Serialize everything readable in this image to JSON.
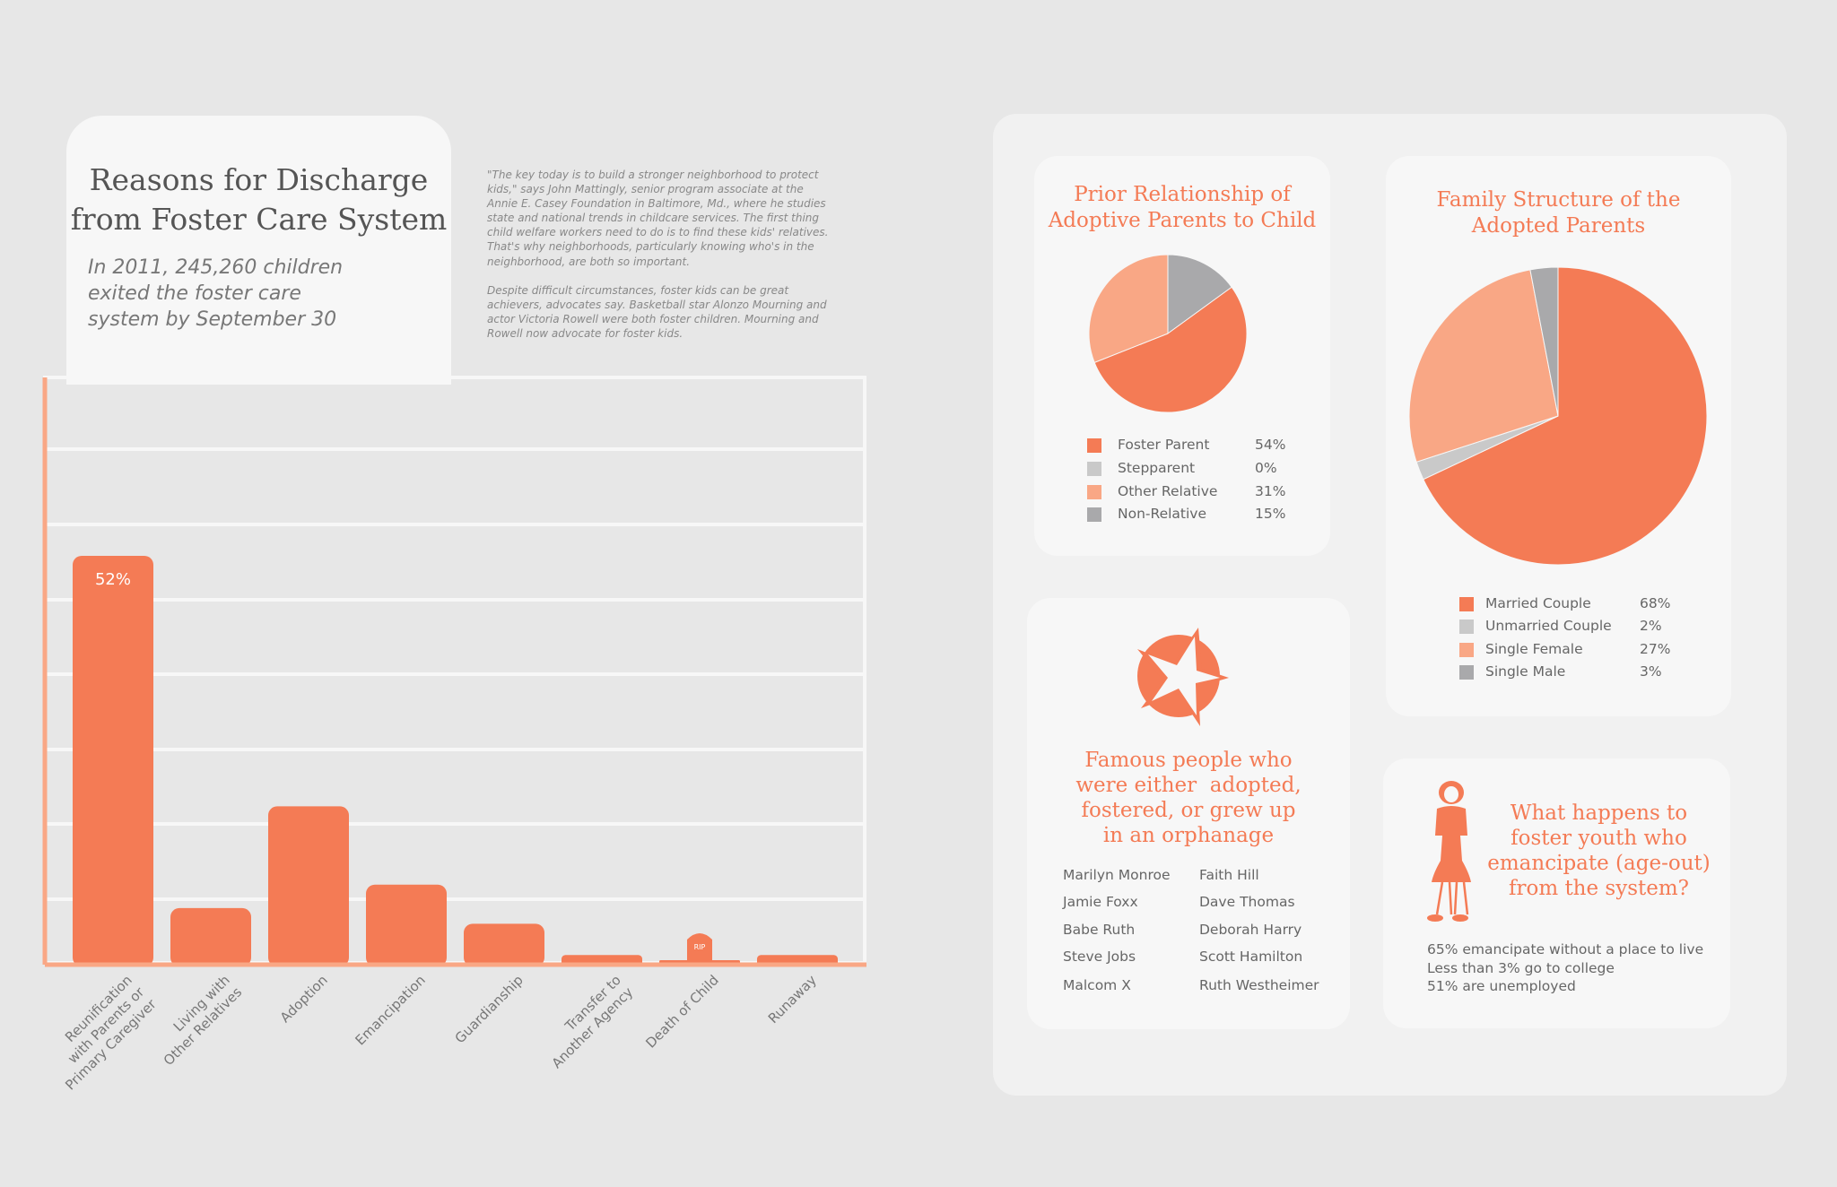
{
  "header": {
    "title_line1": "Reasons for Discharge",
    "title_line2": "from Foster Care System",
    "subtitle_line1": "In 2011, 245,260 children",
    "subtitle_line2": "exited the foster care",
    "subtitle_line3": "system by September 30"
  },
  "quote": {
    "paragraph1": "\"The key today is to build a stronger neighborhood to protect kids,\" says John Mattingly, senior program associate at the Annie E. Casey Foundation in Baltimore, Md., where he studies state and national trends in childcare services. The first thing child welfare workers need to do is to find these kids' relatives. That's why neighborhoods, particularly knowing who's in the neighborhood, are both so important.",
    "paragraph2": "Despite difficult circumstances, foster kids can be great achievers, advocates say. Basketball star Alonzo Mourning and actor Victoria Rowell were both foster children. Mourning and Rowell now advocate for foster kids."
  },
  "colors": {
    "orange": "#f47b55",
    "light_orange": "#f9a785",
    "light_grey": "#c9c9c9",
    "grey": "#a9a9ab",
    "axis": "#f9a785"
  },
  "chart_data": [
    {
      "type": "bar",
      "title": "Reasons for Discharge from Foster Care System",
      "categories": [
        "Reunification with Parents or Primary Caregiver",
        "Living with Other Relatives",
        "Adoption",
        "Emancipation",
        "Guardianship",
        "Transfer to Another Agency",
        "Death of Child",
        "Runaway"
      ],
      "category_lines": [
        [
          "Reunification",
          "with Parents or",
          "Primary Caregiver"
        ],
        [
          "Living with",
          "Other Relatives"
        ],
        [
          "Adoption"
        ],
        [
          "Emancipation"
        ],
        [
          "Guardianship"
        ],
        [
          "Transfer to",
          "Another Agency"
        ],
        [
          "Death of Child"
        ],
        [
          "Runaway"
        ]
      ],
      "values": [
        52,
        7,
        20,
        10,
        5,
        1,
        0,
        1
      ],
      "unit": "%",
      "data_labels": [
        "52%"
      ],
      "ylim": [
        0,
        60
      ],
      "grid": true,
      "tombstone_text": "RIP"
    },
    {
      "type": "pie",
      "title": "Prior Relationship of Adoptive Parents to Child",
      "title_lines": [
        "Prior Relationship of",
        "Adoptive Parents to Child"
      ],
      "labels": [
        "Foster Parent",
        "Stepparent",
        "Other Relative",
        "Non-Relative"
      ],
      "values": [
        54,
        0,
        31,
        15
      ],
      "value_labels": [
        "54%",
        "0%",
        "31%",
        "15%"
      ],
      "colors": [
        "#f47b55",
        "#c9c9c9",
        "#f9a785",
        "#a9a9ab"
      ],
      "legend": "bottom"
    },
    {
      "type": "pie",
      "title": "Family Structure of the Adopted Parents",
      "title_lines": [
        "Family Structure of the",
        "Adopted Parents"
      ],
      "labels": [
        "Married Couple",
        "Unmarried Couple",
        "Single Female",
        "Single Male"
      ],
      "values": [
        68,
        2,
        27,
        3
      ],
      "value_labels": [
        "68%",
        "2%",
        "27%",
        "3%"
      ],
      "colors": [
        "#f47b55",
        "#c9c9c9",
        "#f9a785",
        "#a9a9ab"
      ],
      "legend": "bottom"
    }
  ],
  "famous": {
    "title_lines": [
      "Famous people who",
      "were either  adopted,",
      "fostered, or grew up",
      "in an orphanage"
    ],
    "col1": [
      "Marilyn Monroe",
      "Jamie Foxx",
      "Babe Ruth",
      "Steve Jobs",
      "Malcom X"
    ],
    "col2": [
      "Faith Hill",
      "Dave Thomas",
      "Deborah Harry",
      "Scott Hamilton",
      "Ruth Westheimer"
    ],
    "icon": "star-icon"
  },
  "emancipate": {
    "title_lines": [
      "What happens to",
      "foster youth who",
      "emancipate (age-out)",
      "from the system?"
    ],
    "stats": [
      "65% emancipate without a place to live",
      "Less than 3% go to college",
      "51% are unemployed"
    ],
    "icon": "girl-figure-icon"
  }
}
